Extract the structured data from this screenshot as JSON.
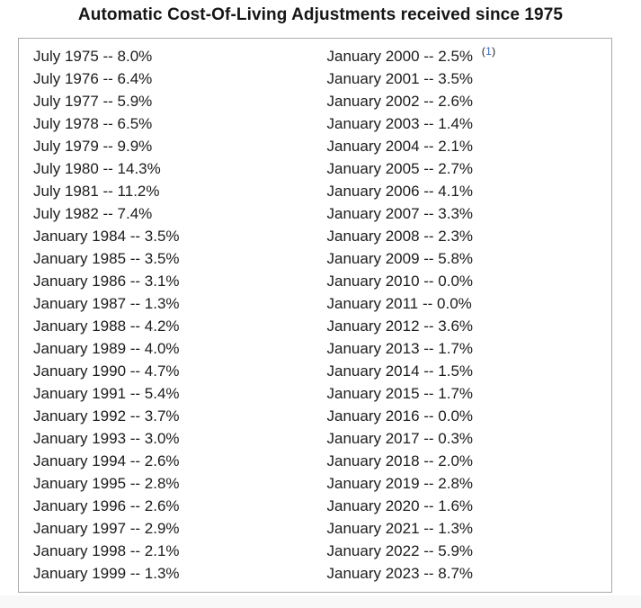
{
  "title": "Automatic Cost-Of-Living Adjustments received since 1975",
  "colors": {
    "footnote_link_blue": "#3366cc",
    "box_border_gray": "#ababab",
    "text_dark": "#1c1c1e",
    "footer_strip_gray": "#f8f8f8"
  },
  "columns": {
    "left": [
      {
        "text": "July 1975 -- 8.0%"
      },
      {
        "text": "July 1976 -- 6.4%"
      },
      {
        "text": "July 1977 -- 5.9%"
      },
      {
        "text": "July 1978 -- 6.5%"
      },
      {
        "text": "July 1979 -- 9.9%"
      },
      {
        "text": "July 1980 -- 14.3%"
      },
      {
        "text": "July 1981 -- 11.2%"
      },
      {
        "text": "July 1982 -- 7.4%"
      },
      {
        "text": "January 1984 -- 3.5%"
      },
      {
        "text": "January 1985 -- 3.5%"
      },
      {
        "text": "January 1986 -- 3.1%"
      },
      {
        "text": "January 1987 -- 1.3%"
      },
      {
        "text": "January 1988 -- 4.2%"
      },
      {
        "text": "January 1989 -- 4.0%"
      },
      {
        "text": "January 1990 -- 4.7%"
      },
      {
        "text": "January 1991 -- 5.4%"
      },
      {
        "text": "January 1992 -- 3.7%"
      },
      {
        "text": "January 1993 -- 3.0%"
      },
      {
        "text": "January 1994 -- 2.6%"
      },
      {
        "text": "January 1995 -- 2.8%"
      },
      {
        "text": "January 1996 -- 2.6%"
      },
      {
        "text": "January 1997 -- 2.9%"
      },
      {
        "text": "January 1998 -- 2.1%"
      },
      {
        "text": "January 1999 -- 1.3%"
      }
    ],
    "right": [
      {
        "text": "January 2000 -- 2.5%",
        "fn_open": "(",
        "fn_num": "1",
        "fn_close": ")"
      },
      {
        "text": "January 2001 -- 3.5%"
      },
      {
        "text": "January 2002 -- 2.6%"
      },
      {
        "text": "January 2003 -- 1.4%"
      },
      {
        "text": "January 2004 -- 2.1%"
      },
      {
        "text": "January 2005 -- 2.7%"
      },
      {
        "text": "January 2006 -- 4.1%"
      },
      {
        "text": "January 2007 -- 3.3%"
      },
      {
        "text": "January 2008 -- 2.3%"
      },
      {
        "text": "January 2009 -- 5.8%"
      },
      {
        "text": "January 2010 -- 0.0%"
      },
      {
        "text": "January 2011 -- 0.0%"
      },
      {
        "text": "January 2012 -- 3.6%"
      },
      {
        "text": "January 2013 -- 1.7%"
      },
      {
        "text": "January 2014 -- 1.5%"
      },
      {
        "text": "January 2015 -- 1.7%"
      },
      {
        "text": "January 2016 -- 0.0%"
      },
      {
        "text": "January 2017 -- 0.3%"
      },
      {
        "text": "January 2018 -- 2.0%"
      },
      {
        "text": "January 2019 -- 2.8%"
      },
      {
        "text": "January 2020 -- 1.6%"
      },
      {
        "text": "January 2021 -- 1.3%"
      },
      {
        "text": "January 2022 -- 5.9%"
      },
      {
        "text": "January 2023 -- 8.7%"
      }
    ]
  }
}
